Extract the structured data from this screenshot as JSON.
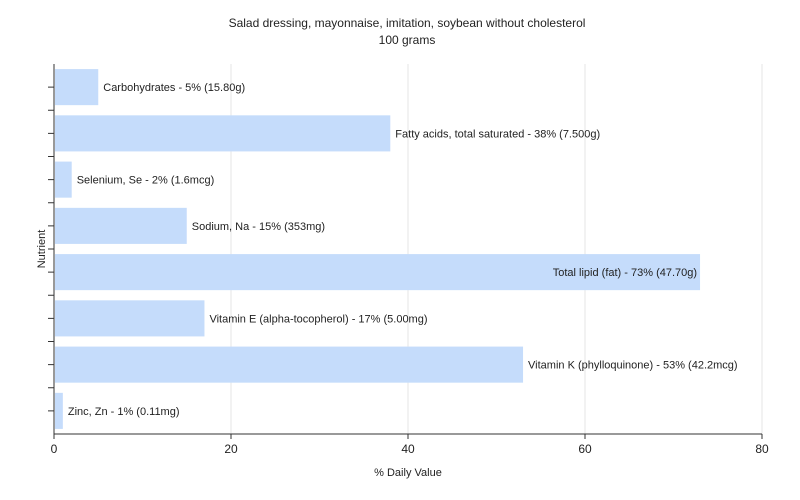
{
  "chart_data": {
    "type": "bar",
    "orientation": "horizontal",
    "title": "Salad dressing, mayonnaise, imitation, soybean without cholesterol",
    "subtitle": "100 grams",
    "xlabel": "% Daily Value",
    "ylabel": "Nutrient",
    "xlim": [
      0,
      80
    ],
    "xticks": [
      "0",
      "20",
      "40",
      "60",
      "80"
    ],
    "grid": true,
    "bar_color": "#c5dcfb",
    "categories": [
      "Carbohydrates",
      "Fatty acids, total saturated",
      "Selenium, Se",
      "Sodium, Na",
      "Total lipid (fat)",
      "Vitamin E (alpha-tocopherol)",
      "Vitamin K (phylloquinone)",
      "Zinc, Zn"
    ],
    "values": [
      5,
      38,
      2,
      15,
      73,
      17,
      53,
      1
    ],
    "labels": [
      "Carbohydrates - 5% (15.80g)",
      "Fatty acids, total saturated - 38% (7.500g)",
      "Selenium, Se - 2% (1.6mcg)",
      "Sodium, Na - 15% (353mg)",
      "Total lipid (fat) - 73% (47.70g)",
      "Vitamin E (alpha-tocopherol) - 17% (5.00mg)",
      "Vitamin K (phylloquinone) - 53% (42.2mcg)",
      "Zinc, Zn - 1% (0.11mg)"
    ]
  }
}
